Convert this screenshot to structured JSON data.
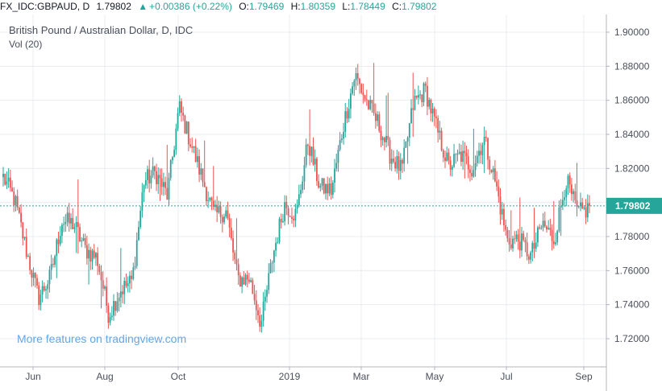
{
  "header": {
    "symbol": "FX_IDC:GBPAUD, D",
    "last": "1.79802",
    "change_arrow": "▲",
    "change": "+0.00386 (+0.22%)",
    "open_label": "O:",
    "open": "1.79469",
    "high_label": "H:",
    "high": "1.80359",
    "low_label": "L:",
    "low": "1.78449",
    "close_label": "C:",
    "close": "1.79802"
  },
  "legend": {
    "title": "British Pound / Australian Dollar, D, IDC",
    "volume": "Vol (20)"
  },
  "promo": "More features on tradingview.com",
  "price_tag": "1.79802",
  "colors": {
    "up": "#26a69a",
    "down": "#ef5350",
    "grid": "#e9ecef",
    "last_line": "#26a69a"
  },
  "chart_data": {
    "type": "candlestick",
    "instrument": "British Pound / Australian Dollar",
    "timeframe": "Daily",
    "y_range": [
      1.71,
      1.91
    ],
    "y_ticks": [
      "1.90000",
      "1.88000",
      "1.86000",
      "1.84000",
      "1.82000",
      "1.80000",
      "1.78000",
      "1.76000",
      "1.74000",
      "1.72000"
    ],
    "x_ticks": [
      "Jun",
      "Aug",
      "Oct",
      "2019",
      "Mar",
      "May",
      "Jul",
      "Sep"
    ],
    "last_close": 1.79802,
    "anchors": [
      [
        1.818,
        1.812
      ],
      [
        1.797,
        1.805
      ],
      [
        1.764,
        1.778
      ],
      [
        1.748,
        1.74
      ],
      [
        1.762,
        1.75
      ],
      [
        1.783,
        1.795
      ],
      [
        1.784,
        1.791
      ],
      [
        1.77,
        1.775
      ],
      [
        1.768,
        1.767
      ],
      [
        1.735,
        1.733
      ],
      [
        1.752,
        1.745
      ],
      [
        1.752,
        1.756
      ],
      [
        1.805,
        1.82
      ],
      [
        1.82,
        1.815
      ],
      [
        1.8,
        1.808
      ],
      [
        1.852,
        1.86
      ],
      [
        1.838,
        1.832
      ],
      [
        1.815,
        1.812
      ],
      [
        1.795,
        1.79
      ],
      [
        1.795,
        1.795
      ],
      [
        1.76,
        1.75
      ],
      [
        1.766,
        1.745
      ],
      [
        1.73,
        1.727
      ],
      [
        1.768,
        1.77
      ],
      [
        1.798,
        1.8
      ],
      [
        1.795,
        1.79
      ],
      [
        1.838,
        1.834
      ],
      [
        1.81,
        1.808
      ],
      [
        1.802,
        1.812
      ],
      [
        1.845,
        1.845
      ],
      [
        1.878,
        1.872
      ],
      [
        1.86,
        1.858
      ],
      [
        1.852,
        1.84
      ],
      [
        1.83,
        1.826
      ],
      [
        1.82,
        1.817
      ],
      [
        1.86,
        1.857
      ],
      [
        1.87,
        1.862
      ],
      [
        1.845,
        1.84
      ],
      [
        1.82,
        1.822
      ],
      [
        1.826,
        1.83
      ],
      [
        1.818,
        1.822
      ],
      [
        1.838,
        1.838
      ],
      [
        1.815,
        1.807
      ],
      [
        1.78,
        1.775
      ],
      [
        1.784,
        1.772
      ],
      [
        1.77,
        1.767
      ],
      [
        1.785,
        1.79
      ],
      [
        1.778,
        1.778
      ],
      [
        1.815,
        1.812
      ],
      [
        1.795,
        1.792
      ],
      [
        1.795,
        1.798
      ]
    ]
  }
}
